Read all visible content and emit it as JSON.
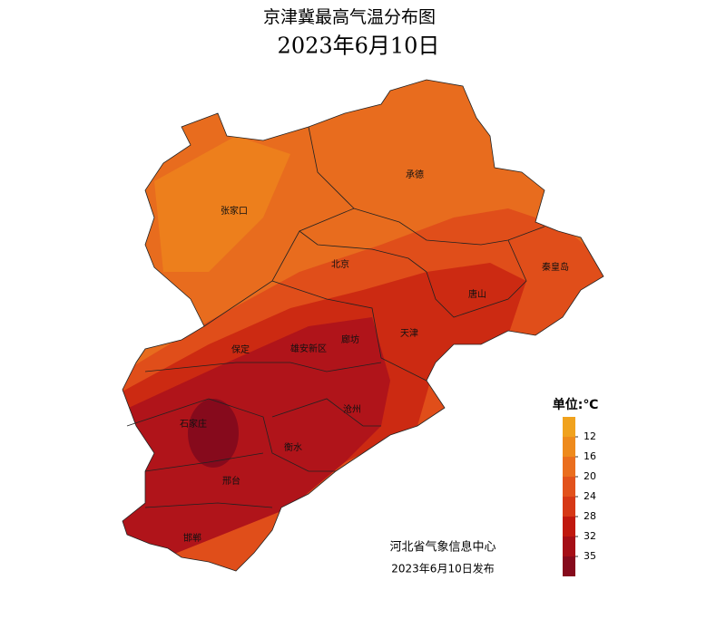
{
  "header": {
    "title": "京津冀最高气温分布图",
    "date": "2023年6月10日"
  },
  "map": {
    "cities": [
      "张家口",
      "承德",
      "北京",
      "秦皇岛",
      "唐山",
      "天津",
      "廊坊",
      "保定",
      "雄安新区",
      "沧州",
      "石家庄",
      "衡水",
      "邢台",
      "邯郸"
    ]
  },
  "legend": {
    "title": "单位:℃",
    "ticks": [
      12,
      16,
      20,
      24,
      28,
      32,
      35
    ],
    "colors": [
      "#f0a21e",
      "#ee8a1c",
      "#ea6e1e",
      "#e2521c",
      "#d63816",
      "#c0180e",
      "#a50e16",
      "#860a1c"
    ]
  },
  "footer": {
    "source": "河北省气象信息中心",
    "issued": "2023年6月10日发布"
  }
}
